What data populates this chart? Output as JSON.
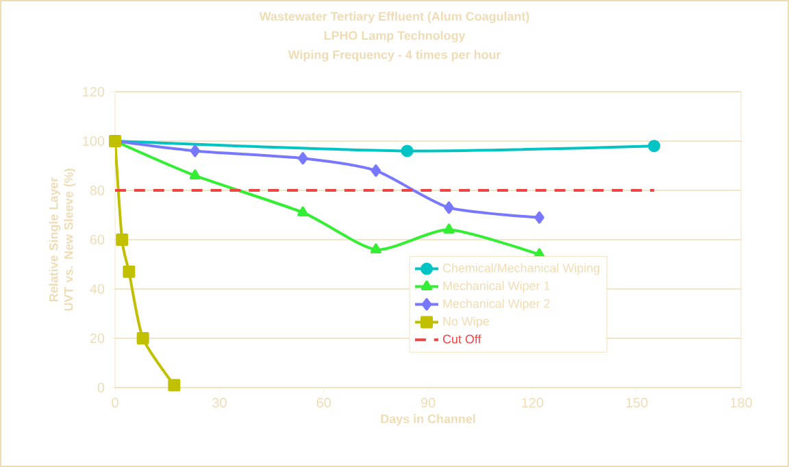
{
  "chart_data": {
    "type": "line",
    "title": "Wastewater Tertiary Effluent (Alum Coagulant)",
    "subtitle": "LPHO Lamp Technology",
    "annotations": [
      "Wiping Frequency - 4 times per hour"
    ],
    "xlabel": "Days in Channel",
    "ylabel": "Relative Single Layer UVT vs. New Sleeve (%)",
    "xlim": [
      0,
      180
    ],
    "xticks": [
      0,
      30,
      60,
      90,
      120,
      150,
      180
    ],
    "ylim": [
      0,
      120
    ],
    "yticks": [
      0,
      20,
      40,
      60,
      80,
      100,
      120
    ],
    "grid": "y",
    "legend": "bottom right",
    "series": [
      {
        "name": "Chemical/Mechanical Wiping",
        "color": "#00c4c4",
        "marker": "circle",
        "x": [
          0,
          84,
          155
        ],
        "values": [
          100,
          96,
          98
        ]
      },
      {
        "name": "Mechanical Wiper 1",
        "color": "#33ee33",
        "marker": "triangle",
        "x": [
          0,
          23,
          54,
          75,
          96,
          122
        ],
        "values": [
          100,
          86,
          71,
          56,
          64,
          54
        ]
      },
      {
        "name": "Mechanical Wiper 2",
        "color": "#7777ff",
        "marker": "diamond",
        "x": [
          0,
          23,
          54,
          75,
          96,
          122
        ],
        "values": [
          100,
          96,
          93,
          88,
          73,
          69
        ]
      },
      {
        "name": "No Wipe",
        "color": "#c0c000",
        "marker": "square",
        "x": [
          0,
          2,
          4,
          8,
          17
        ],
        "values": [
          100,
          60,
          47,
          20,
          1
        ]
      }
    ],
    "ref_lines": [
      {
        "axis": "y",
        "value": 80,
        "label": "Cut Off",
        "color": "#ee4444",
        "line_style": "dashed"
      }
    ]
  }
}
